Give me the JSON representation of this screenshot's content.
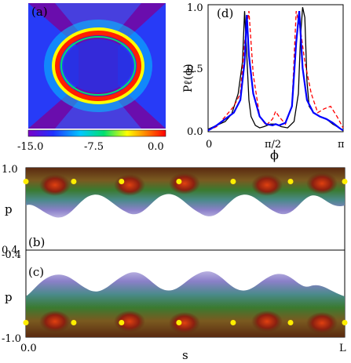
{
  "panels": {
    "a": {
      "label": "(a)",
      "colorbar_ticks": [
        "-15.0",
        "-7.5",
        "0.0"
      ],
      "colorbar_range": [
        -15.0,
        0.0
      ],
      "colormap": [
        "#6a0dad",
        "#1a3cff",
        "#00c8ff",
        "#00e070",
        "#ffff00",
        "#ff8000",
        "#ff0000"
      ]
    },
    "d": {
      "label": "(d)",
      "ylabel": "Pℓ(ϕ)",
      "xlabel": "ϕ",
      "x_ticks": [
        "0",
        "π/2",
        "π"
      ],
      "y_ticks": [
        "0.0",
        "0.5",
        "1.0"
      ]
    },
    "b": {
      "label": "(b)",
      "ylabel": "p",
      "y_ticks": [
        "1.0",
        "0.4"
      ]
    },
    "c": {
      "label": "(c)",
      "ylabel": "p",
      "y_ticks": [
        "-0.4",
        "-1.0"
      ]
    },
    "bottom_axis": {
      "xlabel": "s",
      "x_ticks": [
        "0.0",
        "L"
      ]
    }
  },
  "chart_data": [
    {
      "type": "heatmap",
      "panel": "a",
      "description_colorbar": "log scale",
      "vmin": -15.0,
      "vmax": 0.0
    },
    {
      "type": "line",
      "panel": "d",
      "xlim": [
        0,
        3.1416
      ],
      "ylim": [
        0,
        1.0
      ],
      "series": [
        {
          "color": "#000000",
          "style": "solid",
          "x": [
            0.0,
            0.2,
            0.4,
            0.55,
            0.7,
            0.8,
            0.85,
            0.9,
            0.95,
            1.0,
            1.1,
            1.2,
            1.3,
            1.45,
            1.57,
            1.7,
            1.85,
            2.0,
            2.1,
            2.15,
            2.2,
            2.25,
            2.3,
            2.35,
            2.45,
            2.6,
            2.75,
            2.9,
            3.05,
            3.14
          ],
          "y": [
            0.02,
            0.05,
            0.08,
            0.14,
            0.3,
            0.55,
            0.95,
            0.6,
            0.25,
            0.12,
            0.05,
            0.03,
            0.04,
            0.06,
            0.06,
            0.04,
            0.03,
            0.08,
            0.3,
            0.75,
            0.98,
            0.9,
            0.4,
            0.2,
            0.15,
            0.12,
            0.1,
            0.06,
            0.03,
            0.01
          ]
        },
        {
          "color": "#ff0000",
          "style": "dashed",
          "x": [
            0.0,
            0.2,
            0.4,
            0.6,
            0.75,
            0.85,
            0.95,
            1.05,
            1.2,
            1.35,
            1.5,
            1.57,
            1.65,
            1.8,
            1.95,
            2.05,
            2.15,
            2.25,
            2.4,
            2.55,
            2.7,
            2.85,
            3.0,
            3.14
          ],
          "y": [
            0.01,
            0.04,
            0.12,
            0.2,
            0.3,
            0.7,
            0.95,
            0.45,
            0.12,
            0.05,
            0.1,
            0.16,
            0.12,
            0.06,
            0.2,
            0.95,
            0.8,
            0.55,
            0.3,
            0.15,
            0.18,
            0.2,
            0.12,
            0.03
          ]
        },
        {
          "color": "#0000ff",
          "style": "solid",
          "x": [
            0.0,
            0.2,
            0.4,
            0.6,
            0.75,
            0.85,
            0.9,
            0.95,
            1.05,
            1.2,
            1.35,
            1.5,
            1.57,
            1.65,
            1.8,
            1.95,
            2.05,
            2.12,
            2.2,
            2.3,
            2.45,
            2.6,
            2.75,
            2.9,
            3.05,
            3.14
          ],
          "y": [
            0.01,
            0.05,
            0.1,
            0.15,
            0.25,
            0.55,
            0.92,
            0.6,
            0.3,
            0.12,
            0.06,
            0.05,
            0.06,
            0.05,
            0.07,
            0.2,
            0.7,
            0.95,
            0.5,
            0.25,
            0.15,
            0.12,
            0.1,
            0.07,
            0.03,
            0.01
          ]
        }
      ]
    },
    {
      "type": "heatmap",
      "panel": "b",
      "ylim": [
        0.4,
        1.0
      ],
      "markers": "yellow dots",
      "marker_x": [
        0.0,
        0.15,
        0.3,
        0.48,
        0.65,
        0.83,
        1.0
      ],
      "marker_y": [
        0.9,
        0.9,
        0.9,
        0.9,
        0.9,
        0.9,
        0.9
      ]
    },
    {
      "type": "heatmap",
      "panel": "c",
      "ylim": [
        -1.0,
        -0.4
      ],
      "markers": "yellow dots",
      "marker_x": [
        0.0,
        0.15,
        0.3,
        0.48,
        0.65,
        0.83,
        1.0
      ],
      "marker_y": [
        -0.9,
        -0.9,
        -0.9,
        -0.9,
        -0.9,
        -0.9,
        -0.9
      ]
    }
  ]
}
